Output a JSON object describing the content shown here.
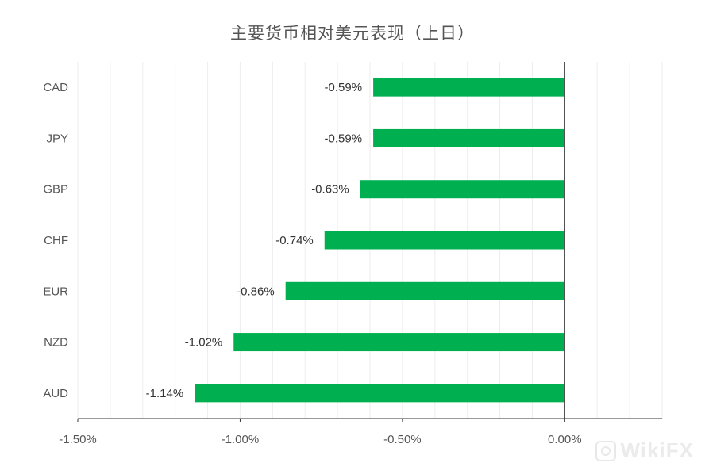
{
  "chart_data": {
    "type": "bar",
    "orientation": "horizontal",
    "title": "主要货币相对美元表现（上日）",
    "categories": [
      "CAD",
      "JPY",
      "GBP",
      "CHF",
      "EUR",
      "NZD",
      "AUD"
    ],
    "values": [
      -0.59,
      -0.59,
      -0.63,
      -0.74,
      -0.86,
      -1.02,
      -1.14
    ],
    "value_labels": [
      "-0.59%",
      "-0.59%",
      "-0.63%",
      "-0.74%",
      "-0.86%",
      "-1.02%",
      "-1.14%"
    ],
    "xlim": [
      -1.5,
      0.3
    ],
    "xticks": [
      -1.5,
      -1.0,
      -0.5,
      0.0
    ],
    "xtick_labels": [
      "-1.50%",
      "-1.00%",
      "-0.50%",
      "0.00%"
    ],
    "xlabel": "",
    "ylabel": "",
    "grid": true,
    "legend": "none",
    "bar_color": "#00b050"
  },
  "watermark": {
    "text": "WikiFX"
  }
}
